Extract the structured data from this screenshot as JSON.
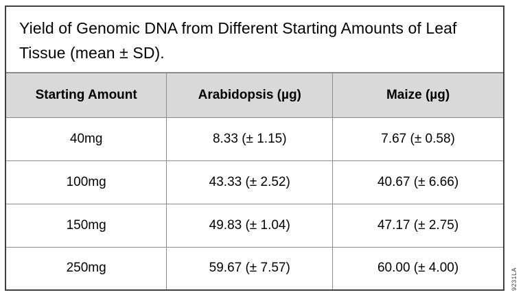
{
  "chart_data": {
    "type": "table",
    "title": "Yield of Genomic DNA from Different Starting Amounts of Leaf Tissue (mean ± SD).",
    "columns": [
      "Starting Amount",
      "Arabidopsis (µg)",
      "Maize (µg)"
    ],
    "rows": [
      [
        "40mg",
        "8.33 (± 1.15)",
        "7.67 (± 0.58)"
      ],
      [
        "100mg",
        "43.33 (± 2.52)",
        "40.67 (± 6.66)"
      ],
      [
        "150mg",
        "49.83 (± 1.04)",
        "47.17 (± 2.75)"
      ],
      [
        "250mg",
        "59.67 (± 7.57)",
        "60.00 (± 4.00)"
      ]
    ],
    "values_unit": "µg",
    "layout": {
      "header_row": true,
      "grid": true,
      "legend": "none"
    }
  },
  "watermark": {
    "id_label": "9231LA"
  },
  "colors": {
    "header_bg": "#d9d9d9",
    "grid_border": "#8c8c8c",
    "outer_border": "#3f3f3f",
    "text": "#000000",
    "background": "#ffffff"
  }
}
